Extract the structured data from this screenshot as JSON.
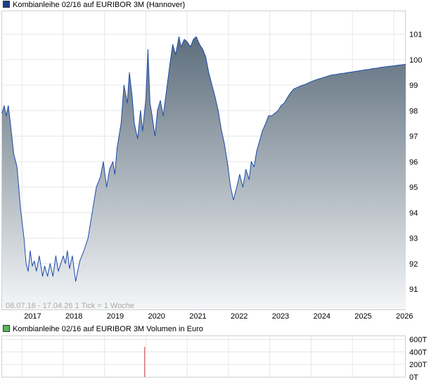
{
  "main_legend": {
    "label": "Kombianleihe 02/16 auf EURIBOR 3M (Hannover)",
    "color": "#1e3f8c"
  },
  "volume_legend": {
    "label": "Kombianleihe 02/16 auf EURIBOR 3M Volumen in Euro",
    "color": "#5ab85a"
  },
  "info_line": "08.07.16 - 17.04.26   1 Tick = 1 Woche",
  "chart_data": [
    {
      "type": "area",
      "name": "price",
      "xlim": [
        2016.52,
        2026.29
      ],
      "ylim": [
        90.2,
        101.9
      ],
      "y_ticks": [
        91,
        92,
        93,
        94,
        95,
        96,
        97,
        98,
        99,
        100,
        101
      ],
      "x_ticks": [
        "2017",
        "2018",
        "2019",
        "2020",
        "2021",
        "2022",
        "2023",
        "2024",
        "2025",
        "2026"
      ],
      "line_color": "#1c4aa8",
      "fill_top_color": "#5d6e7c",
      "fill_bottom_color": "#f4f6f8",
      "grid": true,
      "x": [
        2016.52,
        2016.57,
        2016.62,
        2016.67,
        2016.72,
        2016.8,
        2016.88,
        2016.97,
        2017.05,
        2017.1,
        2017.15,
        2017.2,
        2017.25,
        2017.3,
        2017.35,
        2017.42,
        2017.5,
        2017.55,
        2017.62,
        2017.68,
        2017.75,
        2017.82,
        2017.88,
        2017.94,
        2018.0,
        2018.05,
        2018.1,
        2018.15,
        2018.22,
        2018.3,
        2018.4,
        2018.5,
        2018.6,
        2018.7,
        2018.8,
        2018.9,
        2018.97,
        2019.05,
        2019.12,
        2019.2,
        2019.25,
        2019.3,
        2019.4,
        2019.47,
        2019.55,
        2019.6,
        2019.67,
        2019.72,
        2019.8,
        2019.87,
        2019.92,
        2020.0,
        2020.05,
        2020.1,
        2020.15,
        2020.22,
        2020.28,
        2020.35,
        2020.42,
        2020.5,
        2020.58,
        2020.65,
        2020.72,
        2020.8,
        2020.85,
        2020.93,
        2021.0,
        2021.08,
        2021.15,
        2021.22,
        2021.3,
        2021.38,
        2021.45,
        2021.52,
        2021.6,
        2021.68,
        2021.75,
        2021.82,
        2021.9,
        2021.97,
        2022.05,
        2022.12,
        2022.2,
        2022.27,
        2022.35,
        2022.42,
        2022.5,
        2022.55,
        2022.62,
        2022.68,
        2022.75,
        2022.82,
        2022.9,
        2022.97,
        2023.05,
        2023.12,
        2023.2,
        2023.27,
        2023.35,
        2023.42,
        2023.5,
        2023.58,
        2023.65,
        2023.72,
        2023.8,
        2023.88,
        2023.95,
        2024.02,
        2024.1,
        2024.2,
        2024.3,
        2024.4,
        2024.5,
        2024.6,
        2024.7,
        2024.8,
        2024.9,
        2025.0,
        2025.1,
        2025.2,
        2025.3,
        2025.4,
        2025.5,
        2025.6,
        2025.7,
        2025.8,
        2025.9,
        2026.0,
        2026.1,
        2026.2,
        2026.29
      ],
      "y": [
        97.9,
        98.2,
        97.8,
        98.2,
        97.5,
        96.3,
        95.8,
        94.1,
        93.0,
        92.0,
        91.7,
        92.5,
        91.9,
        92.1,
        91.7,
        92.3,
        91.5,
        91.9,
        91.5,
        92.0,
        91.5,
        92.3,
        91.7,
        92.0,
        92.3,
        92.0,
        92.5,
        91.8,
        92.3,
        91.3,
        92.1,
        92.5,
        93.0,
        94.0,
        95.0,
        95.4,
        96.0,
        95.0,
        95.7,
        96.0,
        95.5,
        96.5,
        97.5,
        99.0,
        98.3,
        99.5,
        98.5,
        97.5,
        96.9,
        98.0,
        97.2,
        98.5,
        100.4,
        98.3,
        97.8,
        97.0,
        98.0,
        98.4,
        97.8,
        98.8,
        99.8,
        100.6,
        100.2,
        100.9,
        100.5,
        100.8,
        100.7,
        100.5,
        100.8,
        100.9,
        100.6,
        100.4,
        100.1,
        99.5,
        99.0,
        98.5,
        98.0,
        97.3,
        96.7,
        96.0,
        95.0,
        94.5,
        95.0,
        95.5,
        95.0,
        95.7,
        95.3,
        96.0,
        95.8,
        96.4,
        96.8,
        97.2,
        97.5,
        97.8,
        97.8,
        97.9,
        98.0,
        98.2,
        98.3,
        98.5,
        98.7,
        98.85,
        98.9,
        98.95,
        99.0,
        99.05,
        99.1,
        99.15,
        99.2,
        99.25,
        99.3,
        99.35,
        99.4,
        99.42,
        99.45,
        99.47,
        99.5,
        99.52,
        99.55,
        99.57,
        99.6,
        99.62,
        99.65,
        99.67,
        99.7,
        99.72,
        99.74,
        99.76,
        99.78,
        99.8,
        99.82
      ]
    },
    {
      "type": "bar",
      "name": "volume",
      "xlim": [
        2016.52,
        2026.29
      ],
      "ylim": [
        0,
        650
      ],
      "y_ticks": [
        0,
        200,
        400,
        600
      ],
      "y_tick_labels": [
        "0T",
        "200T",
        "400T",
        "600T"
      ],
      "bar_color": "#c24040",
      "x": [
        2019.97
      ],
      "values": [
        480
      ]
    }
  ]
}
